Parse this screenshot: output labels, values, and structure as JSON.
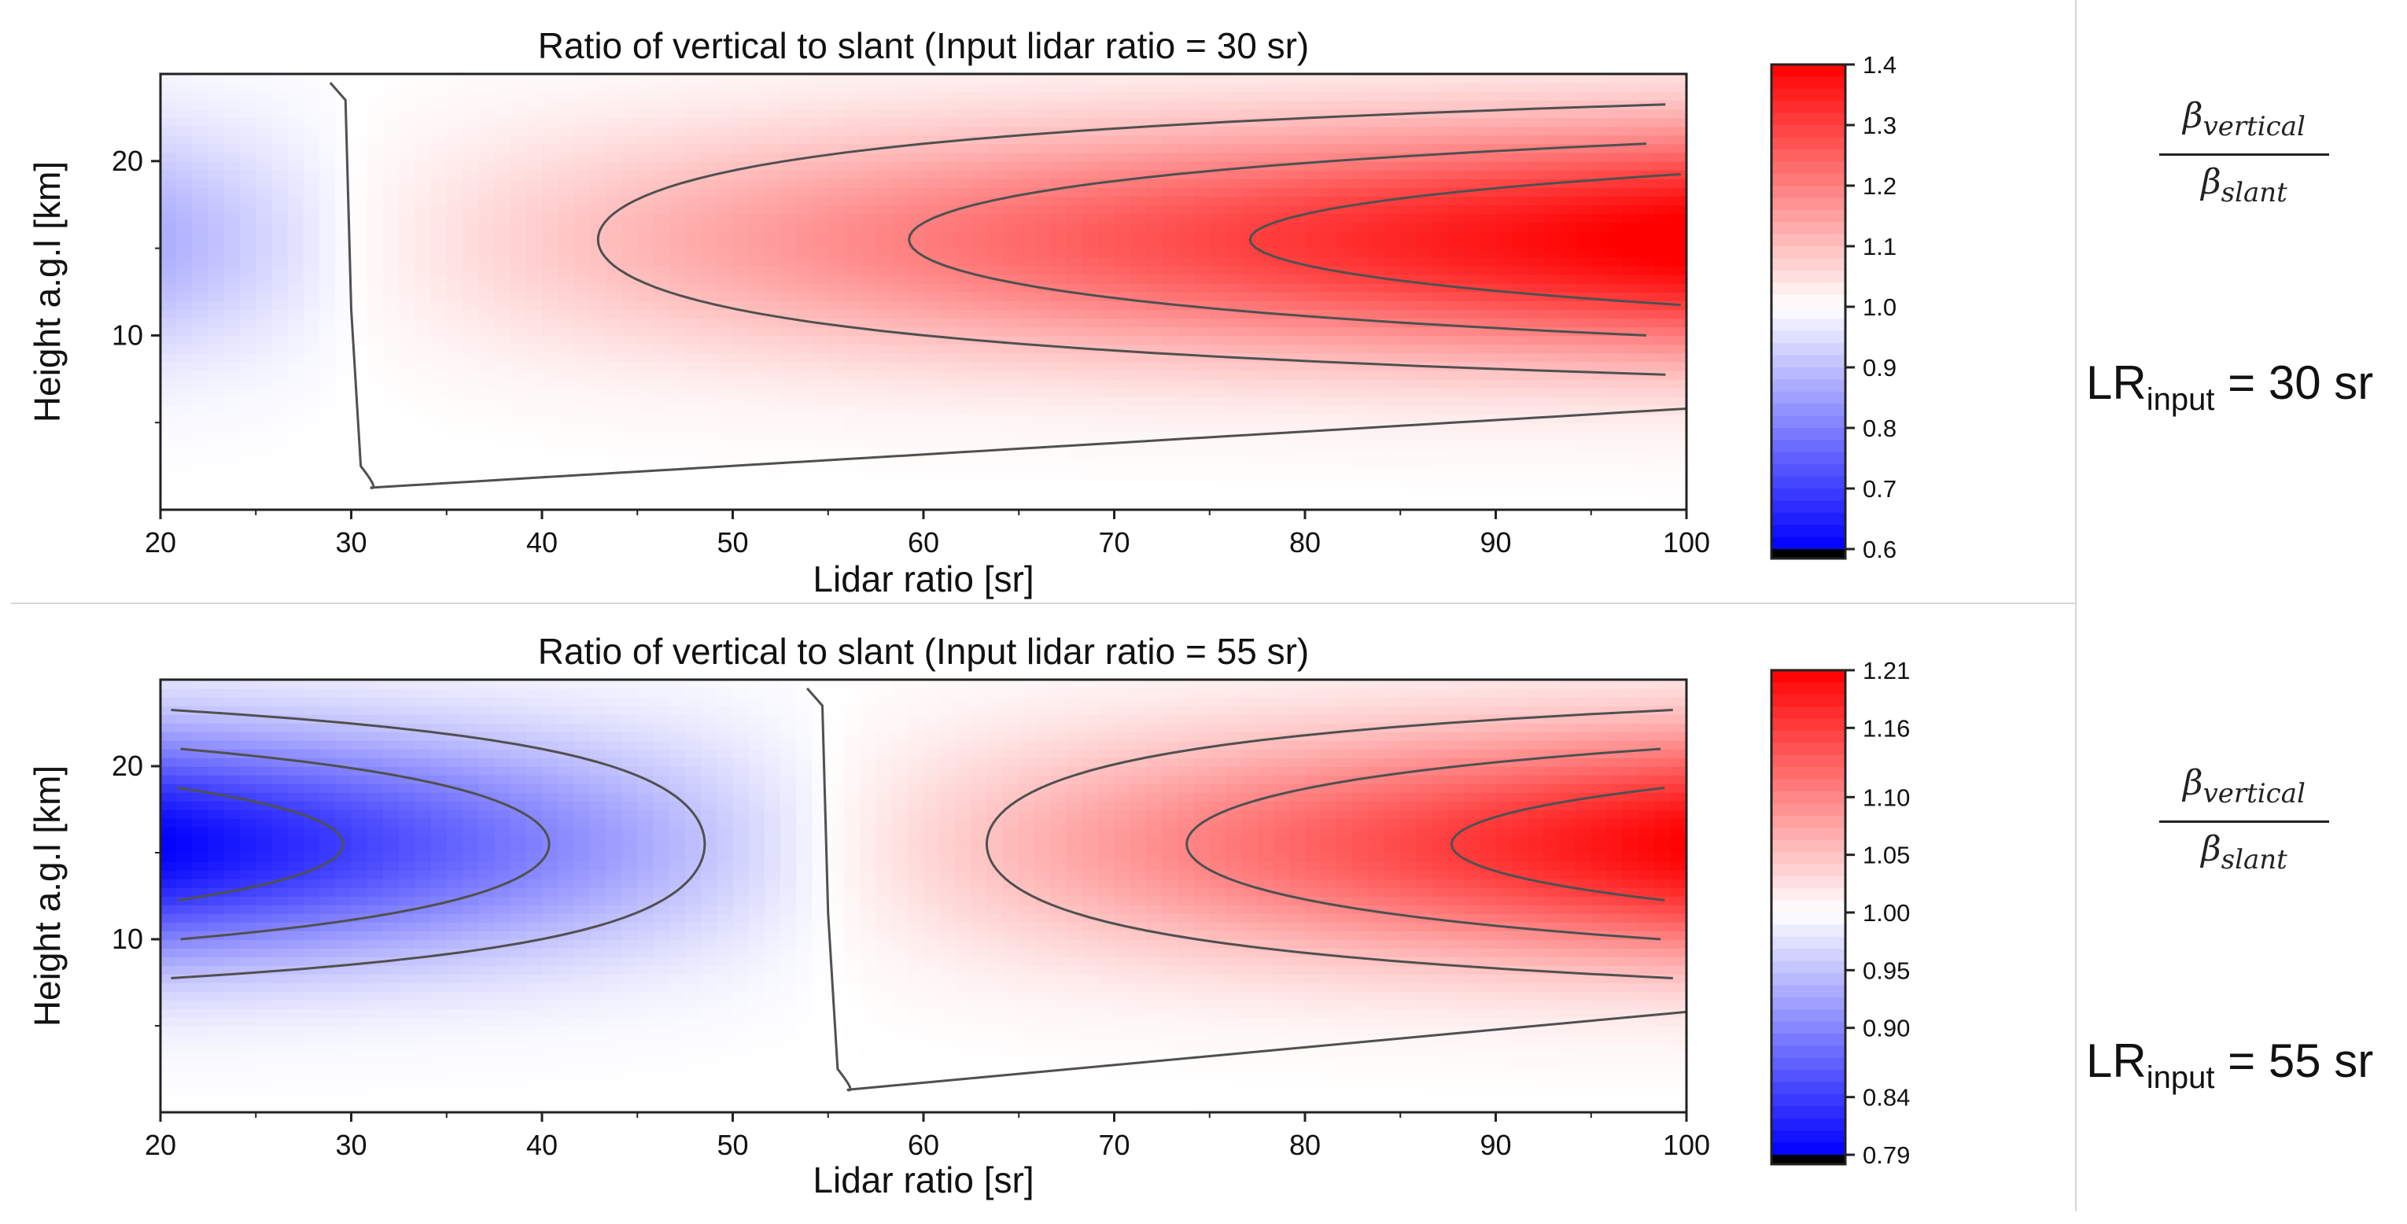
{
  "chart_data": [
    {
      "type": "contour",
      "title": "Ratio of vertical to slant (Input lidar ratio = 30 sr)",
      "xlabel": "Lidar ratio [sr]",
      "ylabel": "Height a.g.l [km]",
      "xlim": [
        20,
        100
      ],
      "ylim": [
        0,
        25
      ],
      "x_ticks": [
        "20",
        "30",
        "40",
        "50",
        "60",
        "70",
        "80",
        "90",
        "100"
      ],
      "y_ticks": [
        "10",
        "20"
      ],
      "input_lidar_ratio": 30,
      "field": {
        "peak_height_km": 15.5,
        "height_width_km": 6.5,
        "value_min": 0.87,
        "value_max": 1.42
      },
      "contour_levels": [
        1.0,
        1.1,
        1.2,
        1.3
      ],
      "colorbar": {
        "min": 0.6,
        "max": 1.4,
        "center": 1.0,
        "tick_values": [
          0.6,
          0.7,
          0.8,
          0.9,
          1.0,
          1.1,
          1.2,
          1.3,
          1.4
        ],
        "tick_labels": [
          "0.6",
          "0.7",
          "0.8",
          "0.9",
          "1.0",
          "1.1",
          "1.2",
          "1.3",
          "1.4"
        ]
      },
      "colors": {
        "low": "#0000ff",
        "mid": "#ffffff",
        "high": "#ff0000",
        "bottom_cap": "#000000"
      }
    },
    {
      "type": "contour",
      "title": "Ratio of vertical to slant (Input lidar ratio = 55 sr)",
      "xlabel": "Lidar ratio [sr]",
      "ylabel": "Height a.g.l [km]",
      "xlim": [
        20,
        100
      ],
      "ylim": [
        0,
        25
      ],
      "x_ticks": [
        "20",
        "30",
        "40",
        "50",
        "60",
        "70",
        "80",
        "90",
        "100"
      ],
      "y_ticks": [
        "10",
        "20"
      ],
      "input_lidar_ratio": 55,
      "field": {
        "peak_height_km": 15.5,
        "height_width_km": 6.5,
        "value_min": 0.79,
        "value_max": 1.21
      },
      "contour_levels": [
        0.84,
        0.9,
        0.95,
        1.0,
        1.05,
        1.1,
        1.16
      ],
      "colorbar": {
        "min": 0.79,
        "max": 1.21,
        "center": 1.0,
        "tick_values": [
          0.79,
          0.84,
          0.9,
          0.95,
          1.0,
          1.05,
          1.1,
          1.16,
          1.21
        ],
        "tick_labels": [
          "0.79",
          "0.84",
          "0.90",
          "0.95",
          "1.00",
          "1.05",
          "1.10",
          "1.16",
          "1.21"
        ]
      },
      "colors": {
        "low": "#0000ff",
        "mid": "#ffffff",
        "high": "#ff0000",
        "bottom_cap": "#000000"
      }
    }
  ],
  "annotations": {
    "ratio_numerator": "β",
    "ratio_numerator_sub": "vertical",
    "ratio_denominator": "β",
    "ratio_denominator_sub": "slant",
    "lr_text": "LR",
    "lr_sub": "input",
    "lr_top": " = 30 sr",
    "lr_bottom": " = 55 sr"
  }
}
